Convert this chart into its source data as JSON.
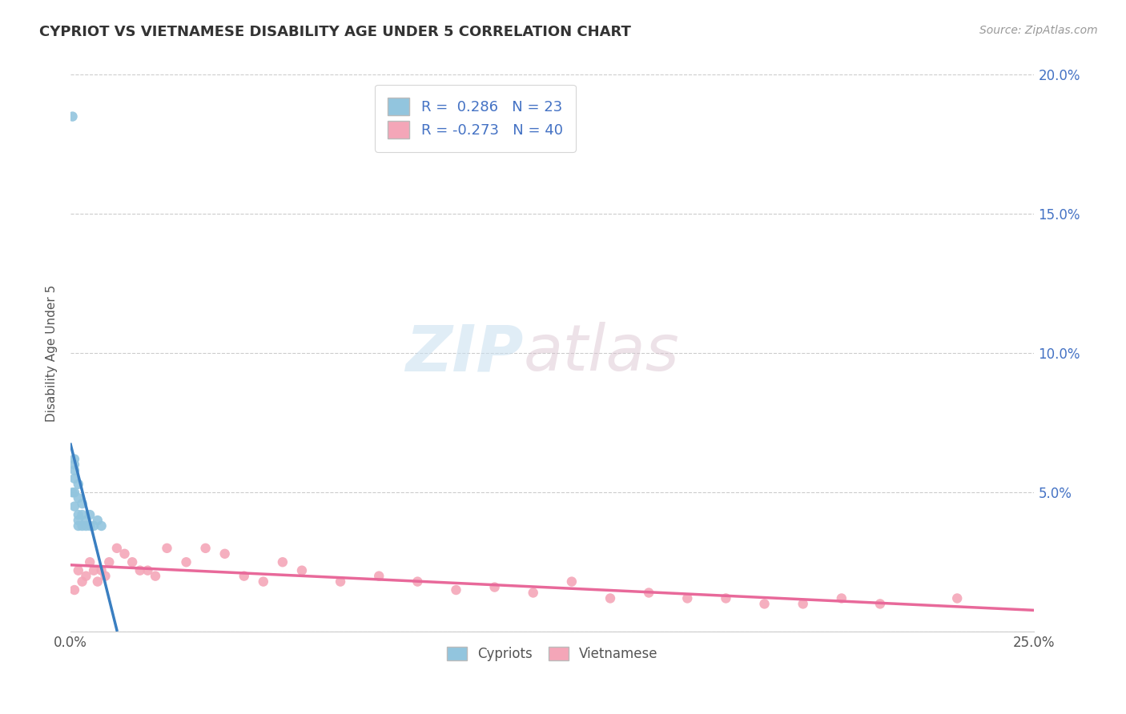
{
  "title": "CYPRIOT VS VIETNAMESE DISABILITY AGE UNDER 5 CORRELATION CHART",
  "source": "Source: ZipAtlas.com",
  "ylabel": "Disability Age Under 5",
  "cypriot_R": 0.286,
  "cypriot_N": 23,
  "vietnamese_R": -0.273,
  "vietnamese_N": 40,
  "cypriot_color": "#92c5de",
  "vietnamese_color": "#f4a6b8",
  "cypriot_line_color": "#3a7fc1",
  "vietnamese_line_color": "#e8699a",
  "watermark_zip": "ZIP",
  "watermark_atlas": "atlas",
  "xlim": [
    0.0,
    0.25
  ],
  "ylim": [
    0.0,
    0.2
  ],
  "yticks": [
    0.0,
    0.05,
    0.1,
    0.15,
    0.2
  ],
  "right_ytick_labels": [
    "",
    "5.0%",
    "10.0%",
    "15.0%",
    "20.0%"
  ],
  "xticks": [
    0.0,
    0.05,
    0.1,
    0.15,
    0.2,
    0.25
  ],
  "xtick_labels": [
    "0.0%",
    "",
    "",
    "",
    "",
    "25.0%"
  ],
  "cypriot_points_x": [
    0.0005,
    0.001,
    0.001,
    0.001,
    0.001,
    0.001,
    0.001,
    0.002,
    0.002,
    0.002,
    0.002,
    0.002,
    0.003,
    0.003,
    0.003,
    0.004,
    0.004,
    0.005,
    0.005,
    0.006,
    0.007,
    0.008,
    0.0005
  ],
  "cypriot_points_y": [
    0.05,
    0.06,
    0.055,
    0.05,
    0.062,
    0.058,
    0.045,
    0.042,
    0.048,
    0.053,
    0.04,
    0.038,
    0.042,
    0.046,
    0.038,
    0.04,
    0.038,
    0.042,
    0.038,
    0.038,
    0.04,
    0.038,
    0.185
  ],
  "vietnamese_points_x": [
    0.001,
    0.002,
    0.003,
    0.004,
    0.005,
    0.006,
    0.007,
    0.008,
    0.009,
    0.01,
    0.012,
    0.014,
    0.016,
    0.018,
    0.02,
    0.022,
    0.025,
    0.03,
    0.035,
    0.04,
    0.045,
    0.05,
    0.055,
    0.06,
    0.07,
    0.08,
    0.09,
    0.1,
    0.11,
    0.12,
    0.13,
    0.14,
    0.15,
    0.16,
    0.17,
    0.18,
    0.19,
    0.2,
    0.21,
    0.23
  ],
  "vietnamese_points_y": [
    0.015,
    0.022,
    0.018,
    0.02,
    0.025,
    0.022,
    0.018,
    0.022,
    0.02,
    0.025,
    0.03,
    0.028,
    0.025,
    0.022,
    0.022,
    0.02,
    0.03,
    0.025,
    0.03,
    0.028,
    0.02,
    0.018,
    0.025,
    0.022,
    0.018,
    0.02,
    0.018,
    0.015,
    0.016,
    0.014,
    0.018,
    0.012,
    0.014,
    0.012,
    0.012,
    0.01,
    0.01,
    0.012,
    0.01,
    0.012
  ]
}
